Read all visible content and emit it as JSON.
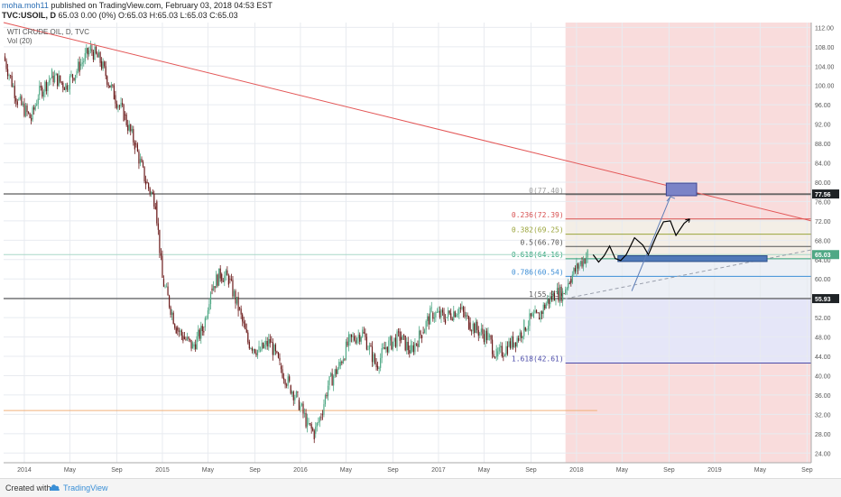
{
  "header": {
    "author": "moha.moh11",
    "published": "published on TradingView.com, February 03, 2018 04:53 EST",
    "symbol": "TVC:USOIL, D",
    "quote": "65.03 0.00 (0%) O:65.03 H:65.03 L:65.03 C:65.03"
  },
  "legend": {
    "title": "WTI CRUDE OIL, D, TVC",
    "vol": "Vol (20)"
  },
  "footer": {
    "created_with": "Created with",
    "brand": "TradingView"
  },
  "colors": {
    "candle_up": "#4fa885",
    "candle_down": "#6b1a1a",
    "trendline": "#e35656",
    "fib_pink": "#f9dcdc",
    "fib_blue": "#e5e6f8",
    "marker_box": "#7b83c7"
  },
  "chart_data": {
    "type": "line",
    "title": "WTI CRUDE OIL, D, TVC",
    "ylim": [
      22,
      113
    ],
    "y_ticks": [
      "112.00",
      "108.00",
      "104.00",
      "100.00",
      "96.00",
      "92.00",
      "88.00",
      "84.00",
      "80.00",
      "76.00",
      "72.00",
      "68.00",
      "64.00",
      "60.00",
      "56.00",
      "52.00",
      "48.00",
      "44.00",
      "40.00",
      "36.00",
      "32.00",
      "28.00",
      "24.00"
    ],
    "x_ticks": [
      "2014",
      "May",
      "Sep",
      "2015",
      "May",
      "Sep",
      "2016",
      "May",
      "Sep",
      "2017",
      "May",
      "Sep",
      "2018",
      "May",
      "Sep",
      "2019",
      "May",
      "Sep"
    ],
    "price_labels": [
      {
        "label": "77.56",
        "value": 77.56,
        "style": "dark"
      },
      {
        "label": "65.03",
        "value": 65.03,
        "style": "green"
      },
      {
        "label": "55.93",
        "value": 55.93,
        "style": "dark"
      }
    ],
    "fib_levels": [
      {
        "label": "0(77.40)",
        "ratio": 0,
        "value": 77.4,
        "color": "#9e9e9e"
      },
      {
        "label": "0.236(72.39)",
        "ratio": 0.236,
        "value": 72.39,
        "color": "#d85050"
      },
      {
        "label": "0.382(69.25)",
        "ratio": 0.382,
        "value": 69.25,
        "color": "#9aa43a"
      },
      {
        "label": "0.5(66.70)",
        "ratio": 0.5,
        "value": 66.7,
        "color": "#555555"
      },
      {
        "label": "0.618(64.16)",
        "ratio": 0.618,
        "value": 64.16,
        "color": "#2fa37a"
      },
      {
        "label": "0.786(60.54)",
        "ratio": 0.786,
        "value": 60.54,
        "color": "#3c8ed6"
      },
      {
        "label": "1(55.93)",
        "ratio": 1,
        "value": 55.93,
        "color": "#555555"
      },
      {
        "label": "1.618(42.61)",
        "ratio": 1.618,
        "value": 42.61,
        "color": "#4a4aa8"
      }
    ],
    "price_path": [
      [
        2013.85,
        106
      ],
      [
        2013.95,
        97
      ],
      [
        2014.05,
        93
      ],
      [
        2014.1,
        98
      ],
      [
        2014.2,
        102
      ],
      [
        2014.3,
        100
      ],
      [
        2014.4,
        104
      ],
      [
        2014.48,
        107.5
      ],
      [
        2014.55,
        105
      ],
      [
        2014.65,
        98
      ],
      [
        2014.72,
        94
      ],
      [
        2014.8,
        88
      ],
      [
        2014.88,
        80
      ],
      [
        2014.95,
        76
      ],
      [
        2015.0,
        60
      ],
      [
        2015.07,
        53
      ],
      [
        2015.1,
        50
      ],
      [
        2015.15,
        48
      ],
      [
        2015.22,
        46
      ],
      [
        2015.3,
        50
      ],
      [
        2015.35,
        58
      ],
      [
        2015.42,
        61
      ],
      [
        2015.48,
        60
      ],
      [
        2015.55,
        54
      ],
      [
        2015.62,
        47
      ],
      [
        2015.7,
        45
      ],
      [
        2015.78,
        47
      ],
      [
        2015.85,
        42
      ],
      [
        2015.92,
        38
      ],
      [
        2015.98,
        35
      ],
      [
        2016.05,
        30
      ],
      [
        2016.1,
        28
      ],
      [
        2016.15,
        32
      ],
      [
        2016.2,
        38
      ],
      [
        2016.28,
        42
      ],
      [
        2016.35,
        47
      ],
      [
        2016.45,
        49
      ],
      [
        2016.55,
        42
      ],
      [
        2016.62,
        46
      ],
      [
        2016.72,
        48
      ],
      [
        2016.8,
        45
      ],
      [
        2016.88,
        49
      ],
      [
        2016.95,
        53
      ],
      [
        2017.05,
        52
      ],
      [
        2017.15,
        54
      ],
      [
        2017.22,
        51
      ],
      [
        2017.3,
        49
      ],
      [
        2017.36,
        48
      ],
      [
        2017.42,
        44
      ],
      [
        2017.5,
        46
      ],
      [
        2017.58,
        48
      ],
      [
        2017.62,
        50
      ],
      [
        2017.68,
        52
      ],
      [
        2017.72,
        52
      ],
      [
        2017.78,
        55
      ],
      [
        2017.85,
        57
      ],
      [
        2017.9,
        57
      ],
      [
        2017.95,
        60
      ],
      [
        2018.02,
        63
      ],
      [
        2018.08,
        65.03
      ]
    ],
    "volume_line": {
      "value": 32.8,
      "x_start": 2013.85,
      "x_end": 2018.15
    },
    "trendline": {
      "points": [
        [
          2013.85,
          113
        ],
        [
          2019.7,
          72
        ]
      ]
    },
    "dashed_trend": {
      "points": [
        [
          2017.92,
          55.93
        ],
        [
          2019.7,
          66
        ]
      ]
    },
    "arrow_up": {
      "points": [
        [
          2018.4,
          57.5
        ],
        [
          2018.68,
          77
        ]
      ]
    },
    "projection_path": [
      [
        2018.12,
        65
      ],
      [
        2018.16,
        63.5
      ],
      [
        2018.2,
        64.8
      ],
      [
        2018.24,
        66.8
      ],
      [
        2018.28,
        64.2
      ],
      [
        2018.32,
        63.8
      ],
      [
        2018.36,
        65
      ],
      [
        2018.42,
        68.5
      ],
      [
        2018.48,
        67
      ],
      [
        2018.52,
        65
      ],
      [
        2018.58,
        69
      ],
      [
        2018.63,
        71.8
      ],
      [
        2018.68,
        72
      ],
      [
        2018.72,
        69
      ],
      [
        2018.78,
        71.5
      ],
      [
        2018.82,
        72.4
      ]
    ],
    "target_box": {
      "x1": 2018.65,
      "x2": 2018.87,
      "y1": 77.2,
      "y2": 79.8
    },
    "support_band": {
      "x1": 2018.3,
      "x2": 2019.38,
      "y1": 63.6,
      "y2": 64.8
    },
    "fib_zone": {
      "x_start": 2017.92
    }
  }
}
